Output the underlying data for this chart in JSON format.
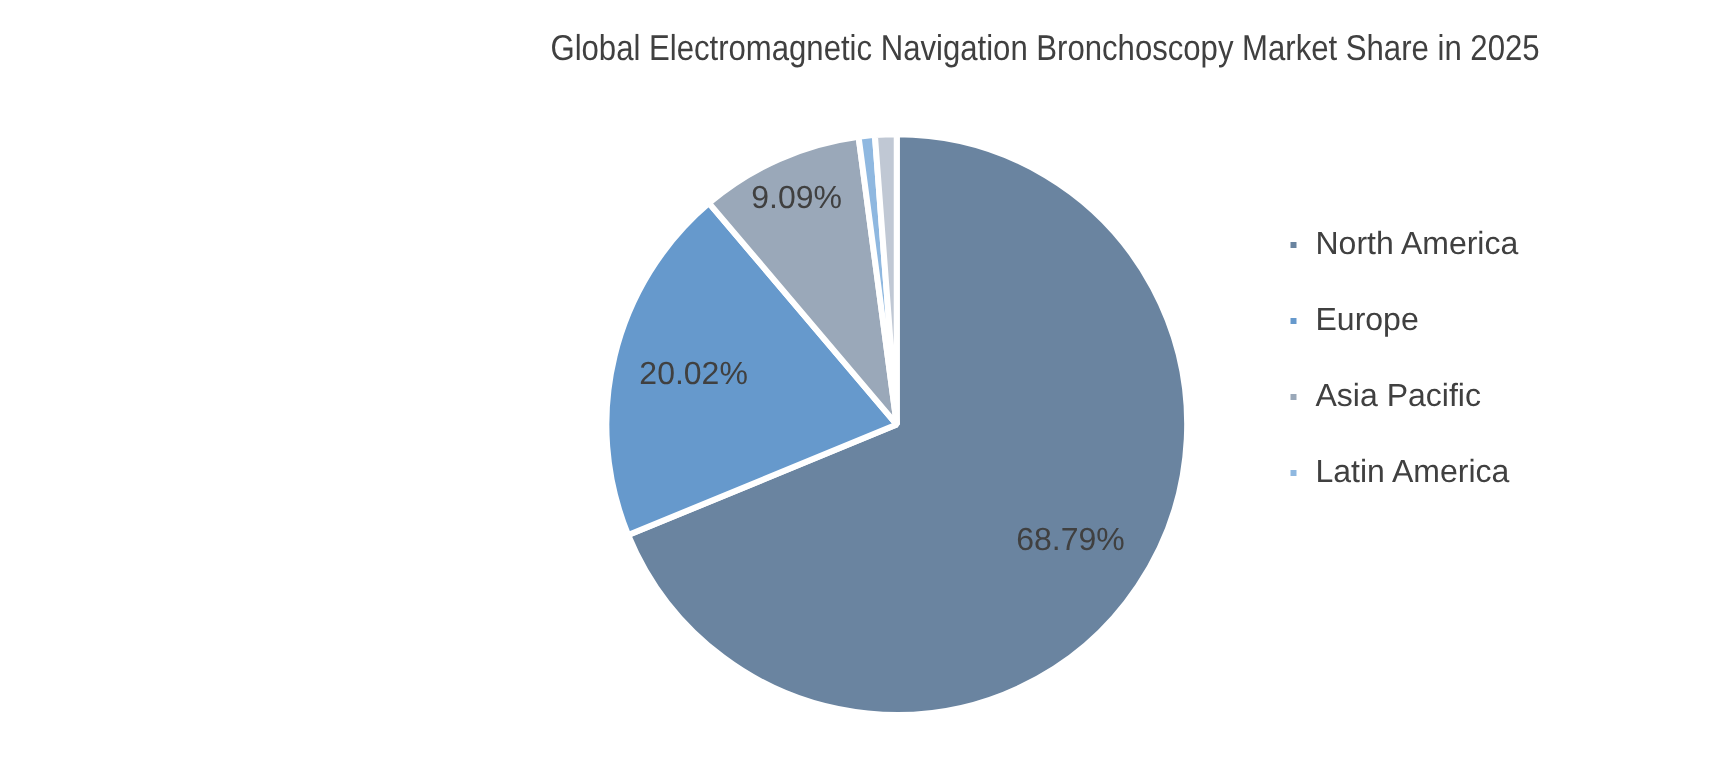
{
  "chart_data": {
    "type": "pie",
    "title": "Global Electromagnetic Navigation Bronchoscopy Market Share in 2025",
    "categories": [
      "North America",
      "Europe",
      "Asia Pacific",
      "Latin America",
      null
    ],
    "values": [
      68.79,
      20.02,
      9.09,
      0.9,
      1.2
    ],
    "colors": [
      "#6a84a0",
      "#6699cc",
      "#9aa8b9",
      "#8fb8e0",
      "#c0c8d4"
    ],
    "value_labels": [
      "68.79%",
      "20.02%",
      "9.09%",
      null,
      null
    ],
    "legend": "right"
  }
}
